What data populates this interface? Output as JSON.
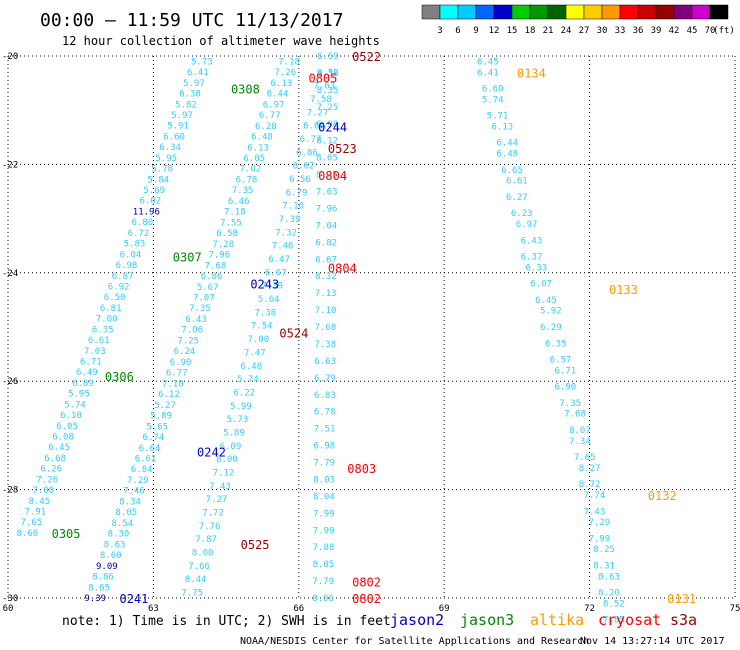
{
  "header": {
    "title": "00:00 — 11:59 UTC 11/13/2017",
    "subtitle": "12 hour collection of altimeter wave heights"
  },
  "footer": {
    "note": "note: 1) Time is in UTC; 2) SWH is in feet",
    "credit": "NOAA/NESDIS Center for Satellite Applications and Research",
    "timestamp": "Nov 14 13:27:14 UTC 2017"
  },
  "colors": {
    "jason2": "#0000cc",
    "jason3": "#008800",
    "altika": "#ff9900",
    "cryosat": "#ff0000",
    "s3a": "#990000",
    "value_text": "#33ccff",
    "value_dark": "#0000aa"
  },
  "chart_data": {
    "type": "scatter",
    "x_range": [
      60,
      75
    ],
    "y_range": [
      -30,
      -20
    ],
    "x_ticks": [
      "60",
      "63",
      "66",
      "69",
      "72",
      "75"
    ],
    "y_ticks": [
      "-20",
      "-22",
      "-24",
      "-26",
      "-28",
      "-30"
    ],
    "colorbar": {
      "labels": [
        "3",
        "6",
        "9",
        "12",
        "15",
        "18",
        "21",
        "24",
        "27",
        "30",
        "33",
        "36",
        "39",
        "42",
        "45",
        "70"
      ],
      "unit": "(ft)",
      "colors": [
        "#808080",
        "#00ffff",
        "#00ccff",
        "#0066ff",
        "#0000cc",
        "#00cc00",
        "#009900",
        "#006600",
        "#ffff00",
        "#ffcc00",
        "#ff9900",
        "#ff0000",
        "#cc0000",
        "#990000",
        "#800080",
        "#cc00cc",
        "#000000"
      ]
    },
    "legend": [
      {
        "name": "jason2",
        "color": "#0000cc"
      },
      {
        "name": "jason3",
        "color": "#008800"
      },
      {
        "name": "altika",
        "color": "#ff9900"
      },
      {
        "name": "cryosat",
        "color": "#ff0000"
      },
      {
        "name": "s3a",
        "color": "#990000"
      }
    ],
    "passes": [
      {
        "satellite": "altika",
        "color": "#ff9900",
        "label": "0134",
        "label_at": [
          70.5,
          -20.3
        ],
        "points": [
          [
            69.9,
            -20.1,
            "6.45"
          ],
          [
            69.9,
            -20.3,
            "6.41"
          ],
          [
            70.0,
            -20.6,
            "6.60"
          ],
          [
            70.0,
            -20.8,
            "5.74"
          ],
          [
            70.1,
            -21.1,
            "5.71"
          ],
          [
            70.2,
            -21.3,
            "6.13"
          ],
          [
            70.3,
            -21.6,
            "6.44"
          ],
          [
            70.3,
            -21.8,
            "6.48"
          ],
          [
            70.4,
            -22.1,
            "6.65"
          ],
          [
            70.5,
            -22.3,
            "6.61"
          ],
          [
            70.5,
            -22.6,
            "6.27"
          ],
          [
            70.6,
            -22.9,
            "6.23"
          ],
          [
            70.7,
            -23.1,
            "6.97"
          ],
          [
            70.8,
            -23.4,
            "6.43"
          ],
          [
            70.8,
            -23.7,
            "6.37"
          ],
          [
            70.9,
            -23.9,
            "6.33"
          ],
          [
            71.0,
            -24.2,
            "6.07"
          ],
          [
            71.1,
            -24.5,
            "6.45"
          ],
          [
            71.2,
            -24.7,
            "5.92"
          ],
          [
            71.2,
            -25.0,
            "6.29"
          ],
          [
            71.3,
            -25.3,
            "6.35"
          ],
          [
            71.4,
            -25.6,
            "6.57"
          ],
          [
            71.5,
            -25.8,
            "6.71"
          ],
          [
            71.5,
            -26.1,
            "6.90"
          ],
          [
            71.6,
            -26.4,
            "7.35"
          ],
          [
            71.7,
            -26.6,
            "7.68"
          ],
          [
            71.8,
            -26.9,
            "8.07"
          ],
          [
            71.8,
            -27.1,
            "7.34"
          ],
          [
            71.9,
            -27.4,
            "7.65"
          ],
          [
            72.0,
            -27.6,
            "8.27"
          ],
          [
            72.0,
            -27.9,
            "8.72"
          ],
          [
            72.1,
            -28.1,
            "7.74"
          ],
          [
            72.1,
            -28.4,
            "7.43"
          ],
          [
            72.2,
            -28.6,
            "7.29"
          ],
          [
            72.2,
            -28.9,
            "7.99"
          ],
          [
            72.3,
            -29.1,
            "8.25"
          ],
          [
            72.3,
            -29.4,
            "8.31"
          ],
          [
            72.4,
            -29.6,
            "8.63"
          ],
          [
            72.4,
            -29.9,
            "8.20"
          ],
          [
            72.5,
            -30.1,
            "8.52"
          ],
          [
            72.5,
            -30.4,
            "7.85"
          ]
        ]
      },
      {
        "satellite": "altika",
        "color": "#ff9900",
        "label": "0133",
        "label_at": [
          72.4,
          -24.3
        ],
        "points": []
      },
      {
        "satellite": "altika",
        "color": "#ff9900",
        "label": "0132",
        "label_at": [
          73.2,
          -28.1
        ],
        "points": []
      },
      {
        "satellite": "altika",
        "color": "#ff9900",
        "label": "0131",
        "label_at": [
          73.6,
          -30.0
        ],
        "points": []
      },
      {
        "satellite": "jason3",
        "color": "#008800",
        "label": "0308",
        "label_at": [
          64.6,
          -20.6
        ],
        "points": []
      },
      {
        "satellite": "jason3",
        "color": "#008800",
        "label": "0307",
        "label_at": [
          63.4,
          -23.7
        ],
        "points": []
      },
      {
        "satellite": "jason3",
        "color": "#008800",
        "label": "0306",
        "label_at": [
          62.0,
          -25.9
        ],
        "points": []
      },
      {
        "satellite": "jason3",
        "color": "#008800",
        "label": "0305",
        "label_at": [
          60.9,
          -28.8
        ],
        "points": []
      },
      {
        "satellite": "jason2",
        "color": "#0000cc",
        "label": "0244",
        "label_at": [
          66.4,
          -21.3
        ],
        "points": []
      },
      {
        "satellite": "jason2",
        "color": "#0000cc",
        "label": "0243",
        "label_at": [
          65.0,
          -24.2
        ],
        "points": []
      },
      {
        "satellite": "jason2",
        "color": "#0000cc",
        "label": "0242",
        "label_at": [
          63.9,
          -27.3
        ],
        "points": []
      },
      {
        "satellite": "jason2",
        "color": "#0000cc",
        "label": "0241",
        "label_at": [
          62.3,
          -30.0
        ],
        "points": []
      },
      {
        "satellite": "cryosat",
        "color": "#ff0000",
        "label": "0805",
        "label_at": [
          66.2,
          -20.4
        ],
        "points": []
      },
      {
        "satellite": "cryosat",
        "color": "#ff0000",
        "label": "0804",
        "label_at": [
          66.4,
          -22.2
        ],
        "points": []
      },
      {
        "satellite": "cryosat",
        "color": "#ff0000",
        "label": "0804",
        "label_at": [
          66.6,
          -23.9
        ],
        "points": []
      },
      {
        "satellite": "cryosat",
        "color": "#ff0000",
        "label": "0803",
        "label_at": [
          67.0,
          -27.6
        ],
        "points": []
      },
      {
        "satellite": "cryosat",
        "color": "#ff0000",
        "label": "0802",
        "label_at": [
          67.1,
          -29.7
        ],
        "points": []
      },
      {
        "satellite": "cryosat",
        "color": "#ff0000",
        "label": "0802",
        "label_at": [
          67.1,
          -30.0
        ],
        "points": []
      },
      {
        "satellite": "s3a",
        "color": "#990000",
        "label": "0522",
        "label_at": [
          67.1,
          -20.0
        ],
        "points": []
      },
      {
        "satellite": "s3a",
        "color": "#990000",
        "label": "0523",
        "label_at": [
          66.6,
          -21.7
        ],
        "points": []
      },
      {
        "satellite": "s3a",
        "color": "#990000",
        "label": "0524",
        "label_at": [
          65.6,
          -25.1
        ],
        "points": []
      },
      {
        "satellite": "s3a",
        "color": "#990000",
        "label": "0525",
        "label_at": [
          64.8,
          -29.0
        ],
        "points": []
      }
    ],
    "tracks": [
      {
        "name": "A",
        "values": [
          "5.73",
          "6.41",
          "5.97",
          "6.38",
          "5.82",
          "5.97",
          "5.91",
          "6.60",
          "6.34",
          "5.95",
          "5.78",
          "5.84",
          "5.69",
          "6.02",
          "11.96",
          "6.80",
          "6.72",
          "5.83",
          "6.04",
          "6.98",
          "6.87",
          "6.92",
          "6.50",
          "6.81",
          "7.00",
          "6.35",
          "6.61",
          "7.03",
          "6.71",
          "6.49",
          "6.89",
          "5.95",
          "5.74",
          "6.10",
          "6.05",
          "6.08",
          "6.45",
          "6.68",
          "6.26",
          "7.26",
          "7.08",
          "8.45",
          "7.91",
          "7.65",
          "8.60"
        ],
        "from": [
          64.0,
          -20.1
        ],
        "to": [
          60.4,
          -28.8
        ]
      },
      {
        "name": "B",
        "values": [
          "7.18",
          "7.26",
          "6.13",
          "6.44",
          "6.97",
          "6.77",
          "6.28",
          "6.48",
          "6.13",
          "6.05",
          "7.02",
          "6.78",
          "7.35",
          "6.46",
          "7.18",
          "7.55",
          "6.58",
          "7.28",
          "7.96",
          "7.68",
          "6.86",
          "5.67",
          "7.07",
          "7.35",
          "6.43",
          "7.06",
          "7.25",
          "6.24",
          "6.90",
          "6.77",
          "7.10",
          "6.12",
          "5.27",
          "5.89",
          "5.65",
          "6.74",
          "6.64",
          "6.61",
          "6.84",
          "7.29",
          "7.46",
          "8.34",
          "8.05",
          "8.54",
          "8.30",
          "8.63",
          "8.60",
          "9.09",
          "8.86",
          "8.65",
          "9.39"
        ],
        "from": [
          65.8,
          -20.1
        ],
        "to": [
          61.8,
          -30.0
        ]
      },
      {
        "name": "C",
        "values": [
          "6.52",
          "7.63",
          "7.58",
          "7.27",
          "6.60",
          "6.77",
          "6.86",
          "6.62",
          "6.56",
          "6.79",
          "7.10",
          "7.39",
          "7.32",
          "7.46",
          "6.47",
          "6.07",
          "7.39",
          "5.64",
          "7.38",
          "7.54",
          "7.00",
          "7.47",
          "6.48",
          "5.74",
          "6.22",
          "5.99",
          "5.73",
          "5.89",
          "6.09",
          "8.00",
          "7.12",
          "7.43",
          "7.27",
          "7.72",
          "7.76",
          "7.87",
          "8.00",
          "7.66",
          "8.44",
          "7.75"
        ],
        "from": [
          66.6,
          -20.3
        ],
        "to": [
          63.8,
          -29.9
        ]
      },
      {
        "name": "D",
        "values": [
          "8.59",
          "8.38",
          "8.35",
          "7.25",
          "6.98",
          "8.12",
          "8.65",
          "8.25",
          "7.63",
          "7.96",
          "7.04",
          "6.82",
          "6.67",
          "8.32",
          "7.13",
          "7.10",
          "7.68",
          "7.38",
          "6.63",
          "6.79",
          "6.83",
          "6.78",
          "7.51",
          "6.98",
          "7.79",
          "8.03",
          "8.04",
          "7.99",
          "7.99",
          "7.88",
          "8.05",
          "7.79",
          "8.06"
        ],
        "from": [
          66.6,
          -20.0
        ],
        "to": [
          66.5,
          -30.0
        ]
      }
    ]
  }
}
